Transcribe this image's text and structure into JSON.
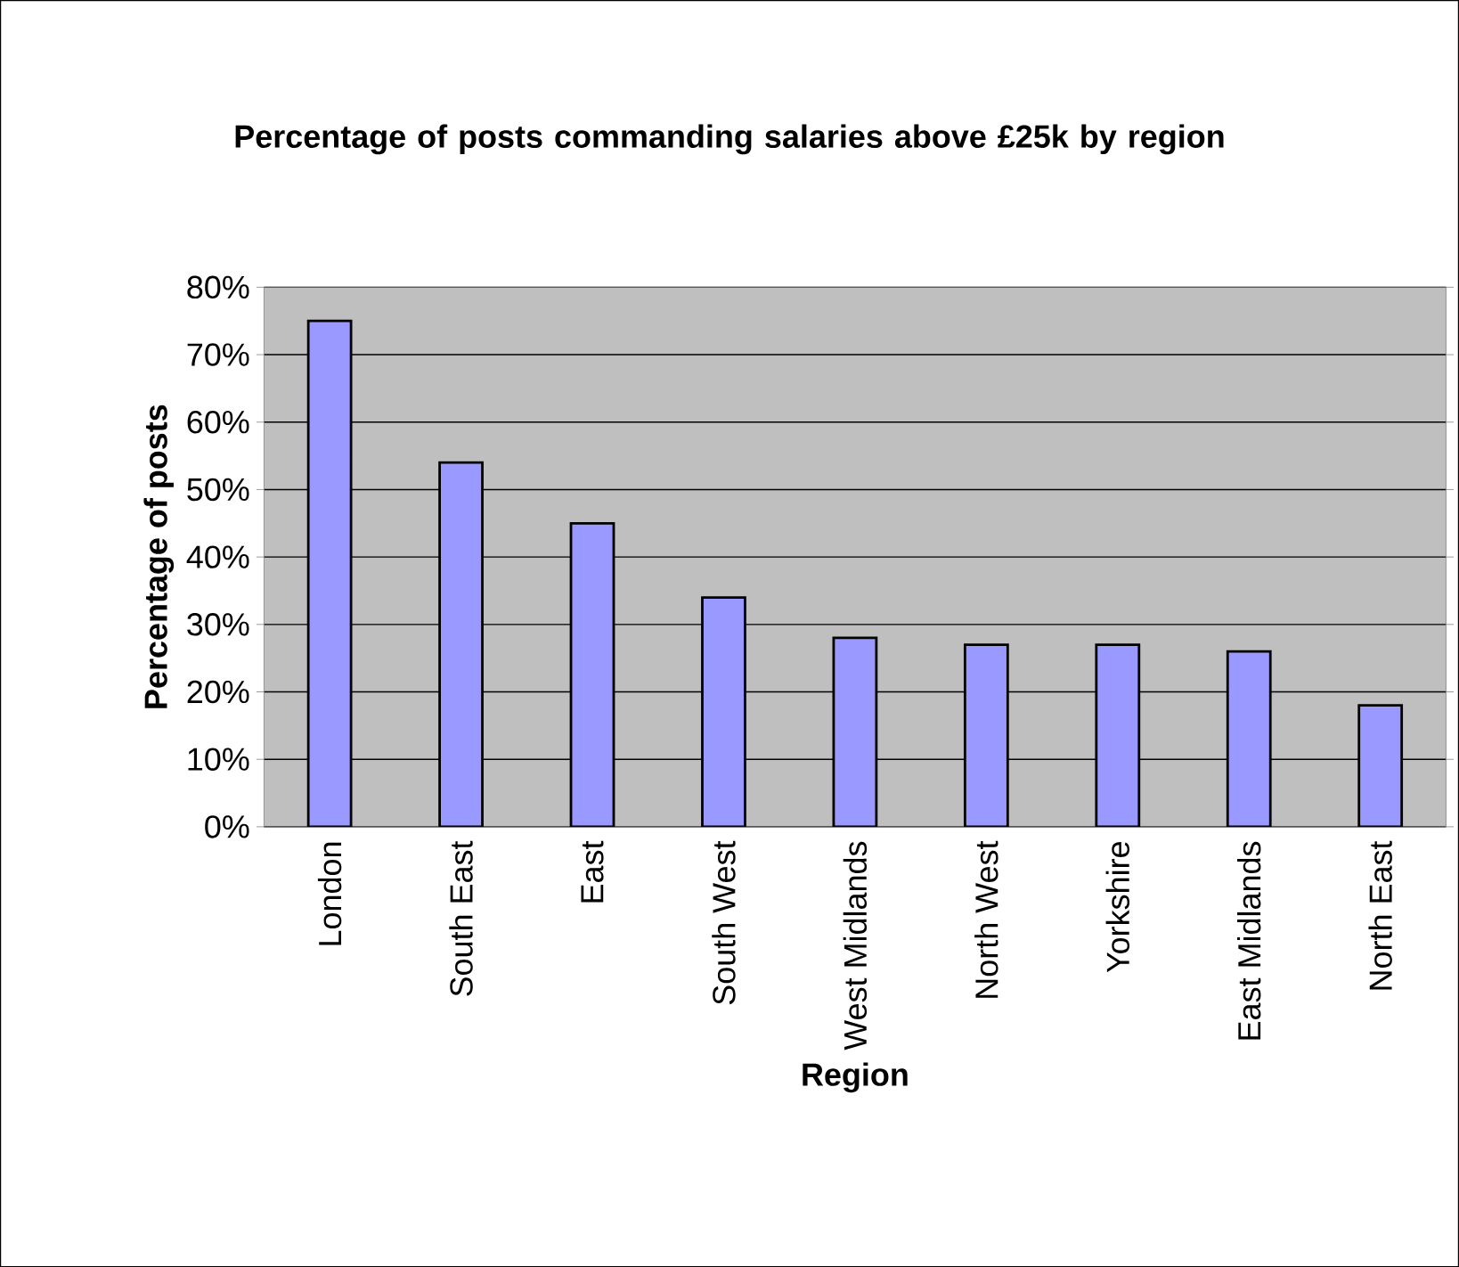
{
  "chart_data": {
    "type": "bar",
    "title": "Percentage of posts commanding salaries above £25k by region",
    "xlabel": "Region",
    "ylabel": "Percentage of posts",
    "categories": [
      "London",
      "South East",
      "East",
      "South West",
      "West Midlands",
      "North West",
      "Yorkshire",
      "East Midlands",
      "North East"
    ],
    "values": [
      75,
      54,
      45,
      34,
      28,
      27,
      27,
      26,
      18
    ],
    "color": "#9999ff",
    "ylim": [
      0,
      80
    ],
    "yticks": [
      {
        "value": 0,
        "label": "0%"
      },
      {
        "value": 10,
        "label": "10%"
      },
      {
        "value": 20,
        "label": "20%"
      },
      {
        "value": 30,
        "label": "30%"
      },
      {
        "value": 40,
        "label": "40%"
      },
      {
        "value": 50,
        "label": "50%"
      },
      {
        "value": 60,
        "label": "60%"
      },
      {
        "value": 70,
        "label": "70%"
      },
      {
        "value": 80,
        "label": "80%"
      }
    ],
    "grid": "y"
  }
}
